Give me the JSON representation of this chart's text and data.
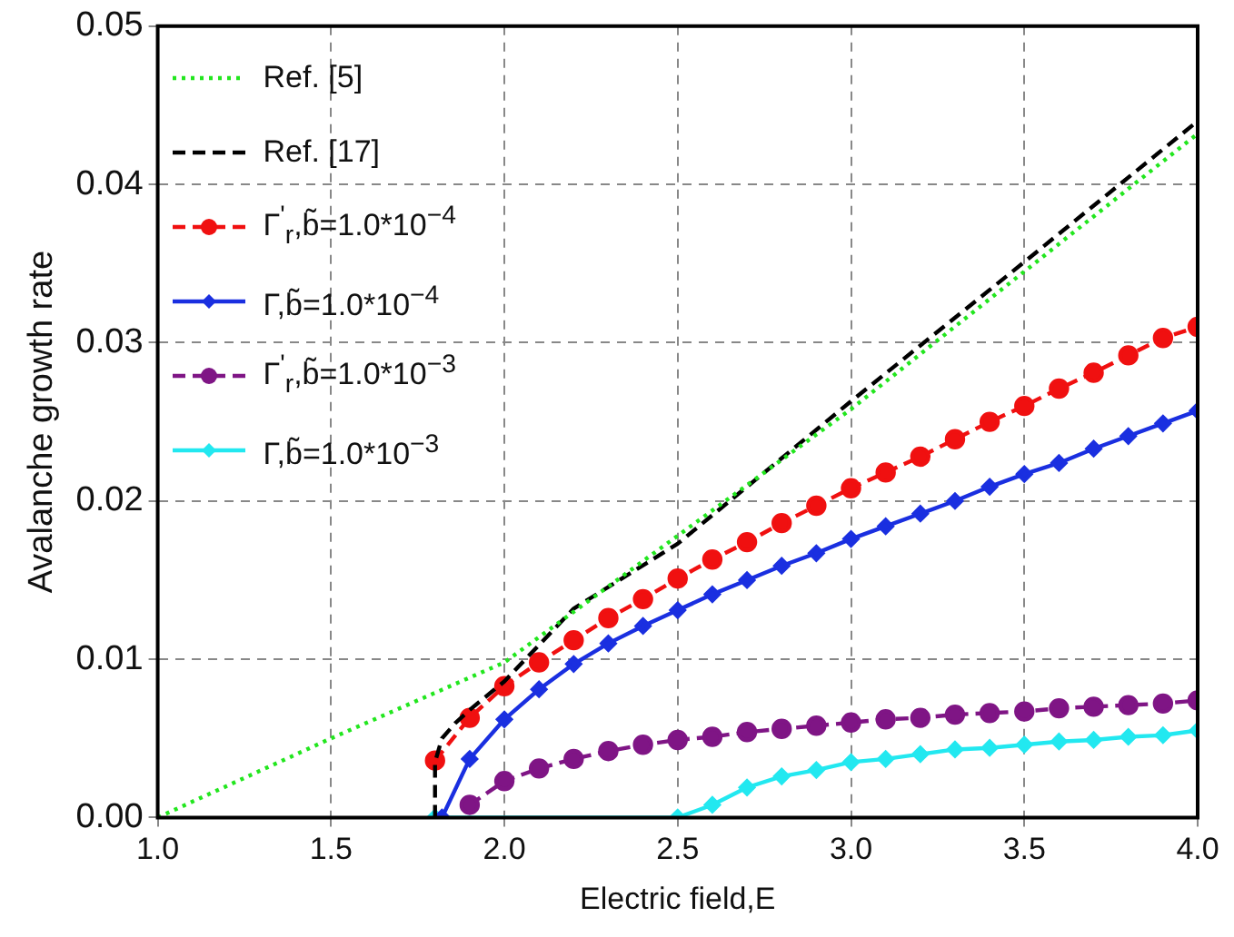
{
  "chart_data": {
    "type": "line",
    "xlabel": "Electric field,E",
    "ylabel": "Avalanche growth rate",
    "xlim": [
      1.0,
      4.0
    ],
    "ylim": [
      0,
      0.05
    ],
    "xticks": [
      {
        "value": 1.0,
        "label": "1.0"
      },
      {
        "value": 1.5,
        "label": "1.5"
      },
      {
        "value": 2.0,
        "label": "2.0"
      },
      {
        "value": 2.5,
        "label": "2.5"
      },
      {
        "value": 3.0,
        "label": "3.0"
      },
      {
        "value": 3.5,
        "label": "3.5"
      },
      {
        "value": 4.0,
        "label": "4.0"
      }
    ],
    "yticks": [
      {
        "value": 0,
        "label": "0.00"
      },
      {
        "value": 0.01,
        "label": "0.01"
      },
      {
        "value": 0.02,
        "label": "0.02"
      },
      {
        "value": 0.03,
        "label": "0.03"
      },
      {
        "value": 0.04,
        "label": "0.04"
      },
      {
        "value": 0.05,
        "label": "0.05"
      }
    ],
    "grid": true,
    "legend": "top left",
    "series": [
      {
        "name": "Ref. [5]",
        "color": "#22e61e",
        "line_style": "dotted",
        "marker": "none",
        "x": [
          1.0,
          1.5,
          2.0,
          2.5,
          3.0,
          3.5,
          4.0
        ],
        "values": [
          0,
          0.005,
          0.0098,
          0.0178,
          0.0258,
          0.0345,
          0.0432
        ]
      },
      {
        "name": "Ref. [17]",
        "color": "#000000",
        "line_style": "dashed",
        "marker": "none",
        "x": [
          1.8,
          1.8,
          1.82,
          1.86,
          1.9,
          2.0,
          2.2,
          2.5,
          3.0,
          3.5,
          4.0
        ],
        "values": [
          0,
          0.0035,
          0.005,
          0.006,
          0.0068,
          0.0086,
          0.0132,
          0.0173,
          0.0263,
          0.0351,
          0.044
        ]
      },
      {
        "name": "Γ$^{'}$$_{r}$,b̃=1.0*10$^{−4}$",
        "color": "#f01010",
        "line_style": "dashed",
        "marker": "circle",
        "x": [
          1.8,
          1.9,
          2.0,
          2.1,
          2.2,
          2.3,
          2.4,
          2.5,
          2.6,
          2.7,
          2.8,
          2.9,
          3.0,
          3.1,
          3.2,
          3.3,
          3.4,
          3.5,
          3.6,
          3.7,
          3.8,
          3.9,
          4.0
        ],
        "values": [
          0.0036,
          0.0063,
          0.0083,
          0.0098,
          0.0112,
          0.0126,
          0.0138,
          0.0151,
          0.0163,
          0.0174,
          0.0186,
          0.0197,
          0.0208,
          0.0218,
          0.0228,
          0.0239,
          0.025,
          0.026,
          0.0271,
          0.0281,
          0.0292,
          0.0303,
          0.031
        ]
      },
      {
        "name": "Γ,b̃=1.0*10$^{−4}$",
        "color": "#1a2fe0",
        "line_style": "solid",
        "marker": "diamond",
        "x": [
          1.82,
          1.9,
          2.0,
          2.1,
          2.2,
          2.3,
          2.4,
          2.5,
          2.6,
          2.7,
          2.8,
          2.9,
          3.0,
          3.1,
          3.2,
          3.3,
          3.4,
          3.5,
          3.6,
          3.7,
          3.8,
          3.9,
          4.0
        ],
        "values": [
          0,
          0.0037,
          0.0062,
          0.0081,
          0.0097,
          0.011,
          0.0121,
          0.0131,
          0.0141,
          0.015,
          0.0159,
          0.0167,
          0.0176,
          0.0184,
          0.0192,
          0.02,
          0.0209,
          0.0217,
          0.0224,
          0.0233,
          0.0241,
          0.0249,
          0.0257
        ]
      },
      {
        "name": "Γ$^{'}$$_{r}$,b̃=1.0*10$^{−3}$",
        "color": "#7f1585",
        "line_style": "dashed",
        "marker": "circle",
        "x": [
          1.9,
          2.0,
          2.1,
          2.2,
          2.3,
          2.4,
          2.5,
          2.6,
          2.7,
          2.8,
          2.9,
          3.0,
          3.1,
          3.2,
          3.3,
          3.4,
          3.5,
          3.6,
          3.7,
          3.8,
          3.9,
          4.0
        ],
        "values": [
          0.0008,
          0.0023,
          0.0031,
          0.0037,
          0.0042,
          0.0046,
          0.0049,
          0.0051,
          0.0054,
          0.0056,
          0.0058,
          0.006,
          0.0062,
          0.0063,
          0.0065,
          0.0066,
          0.0067,
          0.0069,
          0.007,
          0.0071,
          0.0072,
          0.0074
        ]
      },
      {
        "name": "Γ,b̃=1.0*10$^{−3}$",
        "color": "#22e8f0",
        "line_style": "solid",
        "marker": "diamond",
        "x": [
          1.8,
          2.5,
          2.6,
          2.7,
          2.8,
          2.9,
          3.0,
          3.1,
          3.2,
          3.3,
          3.4,
          3.5,
          3.6,
          3.7,
          3.8,
          3.9,
          4.0
        ],
        "values": [
          0,
          0,
          0.0008,
          0.0019,
          0.0026,
          0.003,
          0.0035,
          0.0037,
          0.004,
          0.0043,
          0.0044,
          0.0046,
          0.0048,
          0.0049,
          0.0051,
          0.0052,
          0.0055
        ]
      }
    ]
  }
}
